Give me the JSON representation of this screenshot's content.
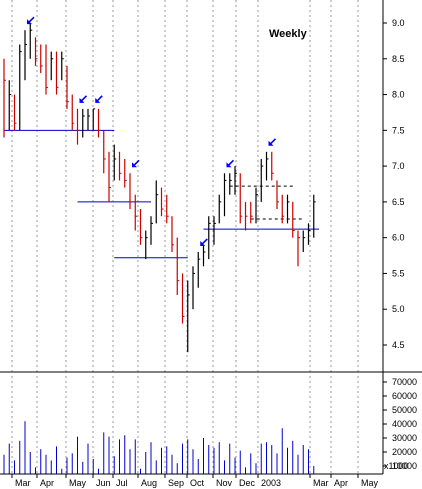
{
  "chart_data": {
    "type": "bar",
    "title": "Weekly",
    "price_axis": {
      "ticks": [
        4.5,
        5.0,
        5.5,
        6.0,
        6.5,
        7.0,
        7.5,
        8.0,
        8.5,
        9.0
      ],
      "tick_labels": [
        "4.5",
        "5.0",
        "5.5",
        "6.0",
        "6.5",
        "7.0",
        "7.5",
        "8.0",
        "8.5",
        "9.0"
      ],
      "ylim": [
        4.0,
        9.5
      ]
    },
    "volume_axis": {
      "ticks": [
        10000,
        20000,
        30000,
        40000,
        50000,
        60000,
        70000
      ],
      "tick_labels": [
        "10000",
        "20000",
        "30000",
        "40000",
        "50000",
        "60000",
        "70000"
      ],
      "unit_label": "x1000",
      "ylim": [
        0,
        75000
      ]
    },
    "x_tick_labels": [
      "Mar",
      "Apr",
      "May",
      "Jun",
      "Jul",
      "Aug",
      "Sep",
      "Oct",
      "Nov",
      "Dec",
      "2003",
      "Mar",
      "Apr",
      "May"
    ],
    "grid": true,
    "colors": {
      "up_bar": "#000000",
      "down_bar": "#cc0000",
      "volume": "#0000cc",
      "support_line": "#0000cc",
      "arrow": "#0000ff",
      "grid": "#999999"
    },
    "weekly_bars": [
      {
        "h": 8.5,
        "l": 7.4,
        "c": 8.2,
        "up": false
      },
      {
        "h": 8.2,
        "l": 7.5,
        "c": 8.0,
        "up": true
      },
      {
        "h": 8.0,
        "l": 7.5,
        "c": 7.6,
        "up": false
      },
      {
        "h": 8.7,
        "l": 7.5,
        "c": 8.6,
        "up": true
      },
      {
        "h": 8.9,
        "l": 8.2,
        "c": 8.7,
        "up": true
      },
      {
        "h": 9.0,
        "l": 8.5,
        "c": 8.9,
        "up": true
      },
      {
        "h": 8.8,
        "l": 8.4,
        "c": 8.5,
        "up": false
      },
      {
        "h": 8.7,
        "l": 8.3,
        "c": 8.4,
        "up": false
      },
      {
        "h": 8.7,
        "l": 8.0,
        "c": 8.1,
        "up": false
      },
      {
        "h": 8.6,
        "l": 8.2,
        "c": 8.5,
        "up": true
      },
      {
        "h": 8.6,
        "l": 8.0,
        "c": 8.1,
        "up": false
      },
      {
        "h": 8.6,
        "l": 8.2,
        "c": 8.5,
        "up": true
      },
      {
        "h": 8.4,
        "l": 7.8,
        "c": 7.9,
        "up": false
      },
      {
        "h": 8.0,
        "l": 7.5,
        "c": 7.6,
        "up": false
      },
      {
        "h": 7.8,
        "l": 7.3,
        "c": 7.5,
        "up": false
      },
      {
        "h": 7.8,
        "l": 7.4,
        "c": 7.7,
        "up": true
      },
      {
        "h": 7.8,
        "l": 7.5,
        "c": 7.7,
        "up": true
      },
      {
        "h": 7.8,
        "l": 7.5,
        "c": 7.8,
        "up": true
      },
      {
        "h": 7.8,
        "l": 7.4,
        "c": 7.5,
        "up": false
      },
      {
        "h": 7.5,
        "l": 6.9,
        "c": 7.1,
        "up": false
      },
      {
        "h": 7.2,
        "l": 6.5,
        "c": 6.7,
        "up": false
      },
      {
        "h": 7.3,
        "l": 6.8,
        "c": 7.1,
        "up": true
      },
      {
        "h": 7.2,
        "l": 6.8,
        "c": 6.9,
        "up": false
      },
      {
        "h": 7.1,
        "l": 6.7,
        "c": 6.8,
        "up": false
      },
      {
        "h": 6.9,
        "l": 6.4,
        "c": 6.5,
        "up": false
      },
      {
        "h": 6.6,
        "l": 6.1,
        "c": 6.3,
        "up": false
      },
      {
        "h": 6.4,
        "l": 5.9,
        "c": 6.0,
        "up": false
      },
      {
        "h": 6.1,
        "l": 5.7,
        "c": 6.0,
        "up": true
      },
      {
        "h": 6.3,
        "l": 5.9,
        "c": 6.2,
        "up": true
      },
      {
        "h": 6.8,
        "l": 6.2,
        "c": 6.6,
        "up": true
      },
      {
        "h": 6.7,
        "l": 6.3,
        "c": 6.4,
        "up": false
      },
      {
        "h": 6.6,
        "l": 6.2,
        "c": 6.3,
        "up": false
      },
      {
        "h": 6.3,
        "l": 5.8,
        "c": 5.9,
        "up": false
      },
      {
        "h": 6.0,
        "l": 5.2,
        "c": 5.4,
        "up": false
      },
      {
        "h": 5.5,
        "l": 4.8,
        "c": 4.9,
        "up": false
      },
      {
        "h": 5.4,
        "l": 4.4,
        "c": 5.2,
        "up": true
      },
      {
        "h": 5.6,
        "l": 5.0,
        "c": 5.5,
        "up": true
      },
      {
        "h": 5.8,
        "l": 5.3,
        "c": 5.7,
        "up": true
      },
      {
        "h": 5.9,
        "l": 5.6,
        "c": 5.8,
        "up": true
      },
      {
        "h": 6.3,
        "l": 5.7,
        "c": 6.2,
        "up": true
      },
      {
        "h": 6.3,
        "l": 5.9,
        "c": 6.2,
        "up": true
      },
      {
        "h": 6.6,
        "l": 6.2,
        "c": 6.5,
        "up": true
      },
      {
        "h": 6.9,
        "l": 6.3,
        "c": 6.8,
        "up": true
      },
      {
        "h": 6.9,
        "l": 6.6,
        "c": 6.8,
        "up": true
      },
      {
        "h": 7.0,
        "l": 6.6,
        "c": 6.9,
        "up": true
      },
      {
        "h": 6.9,
        "l": 6.2,
        "c": 6.3,
        "up": false
      },
      {
        "h": 6.5,
        "l": 6.1,
        "c": 6.3,
        "up": false
      },
      {
        "h": 6.5,
        "l": 6.2,
        "c": 6.3,
        "up": false
      },
      {
        "h": 6.7,
        "l": 6.2,
        "c": 6.6,
        "up": true
      },
      {
        "h": 7.1,
        "l": 6.5,
        "c": 7.0,
        "up": true
      },
      {
        "h": 7.2,
        "l": 6.8,
        "c": 7.1,
        "up": true
      },
      {
        "h": 7.2,
        "l": 6.8,
        "c": 6.9,
        "up": false
      },
      {
        "h": 6.8,
        "l": 6.4,
        "c": 6.5,
        "up": false
      },
      {
        "h": 6.6,
        "l": 6.2,
        "c": 6.3,
        "up": false
      },
      {
        "h": 6.6,
        "l": 6.2,
        "c": 6.5,
        "up": true
      },
      {
        "h": 6.5,
        "l": 6.0,
        "c": 6.1,
        "up": false
      },
      {
        "h": 6.1,
        "l": 5.6,
        "c": 6.0,
        "up": false
      },
      {
        "h": 6.1,
        "l": 5.8,
        "c": 6.0,
        "up": true
      },
      {
        "h": 6.2,
        "l": 5.9,
        "c": 6.1,
        "up": true
      },
      {
        "h": 6.6,
        "l": 6.0,
        "c": 6.5,
        "up": true
      }
    ],
    "volumes": [
      18000,
      26000,
      14000,
      28000,
      42000,
      20000,
      9000,
      22000,
      18000,
      14000,
      24000,
      8000,
      16000,
      19000,
      31000,
      13000,
      26000,
      15000,
      8000,
      34000,
      31000,
      17000,
      29000,
      32000,
      22000,
      29000,
      8000,
      20000,
      27000,
      14000,
      23000,
      24000,
      18000,
      12000,
      26000,
      29000,
      22000,
      15000,
      30000,
      25000,
      23000,
      27000,
      14000,
      26000,
      16000,
      21000,
      9000,
      19000,
      12000,
      26000,
      27000,
      25000,
      19000,
      37000,
      23000,
      28000,
      18000,
      25000,
      22000,
      10000
    ],
    "horizontal_lines": [
      {
        "price": 7.5,
        "from_week": 0,
        "to_week": 21,
        "style": "solid"
      },
      {
        "price": 6.5,
        "from_week": 14,
        "to_week": 28,
        "style": "solid"
      },
      {
        "price": 5.72,
        "from_week": 21,
        "to_week": 35,
        "style": "solid"
      },
      {
        "price": 6.12,
        "from_week": 38,
        "to_week": 60,
        "style": "solid"
      },
      {
        "price": 6.72,
        "from_week": 43,
        "to_week": 55,
        "style": "dashed"
      },
      {
        "price": 6.26,
        "from_week": 47,
        "to_week": 57,
        "style": "dashed"
      }
    ],
    "arrow_weeks": [
      4,
      14,
      17,
      24,
      37,
      42,
      50
    ]
  }
}
